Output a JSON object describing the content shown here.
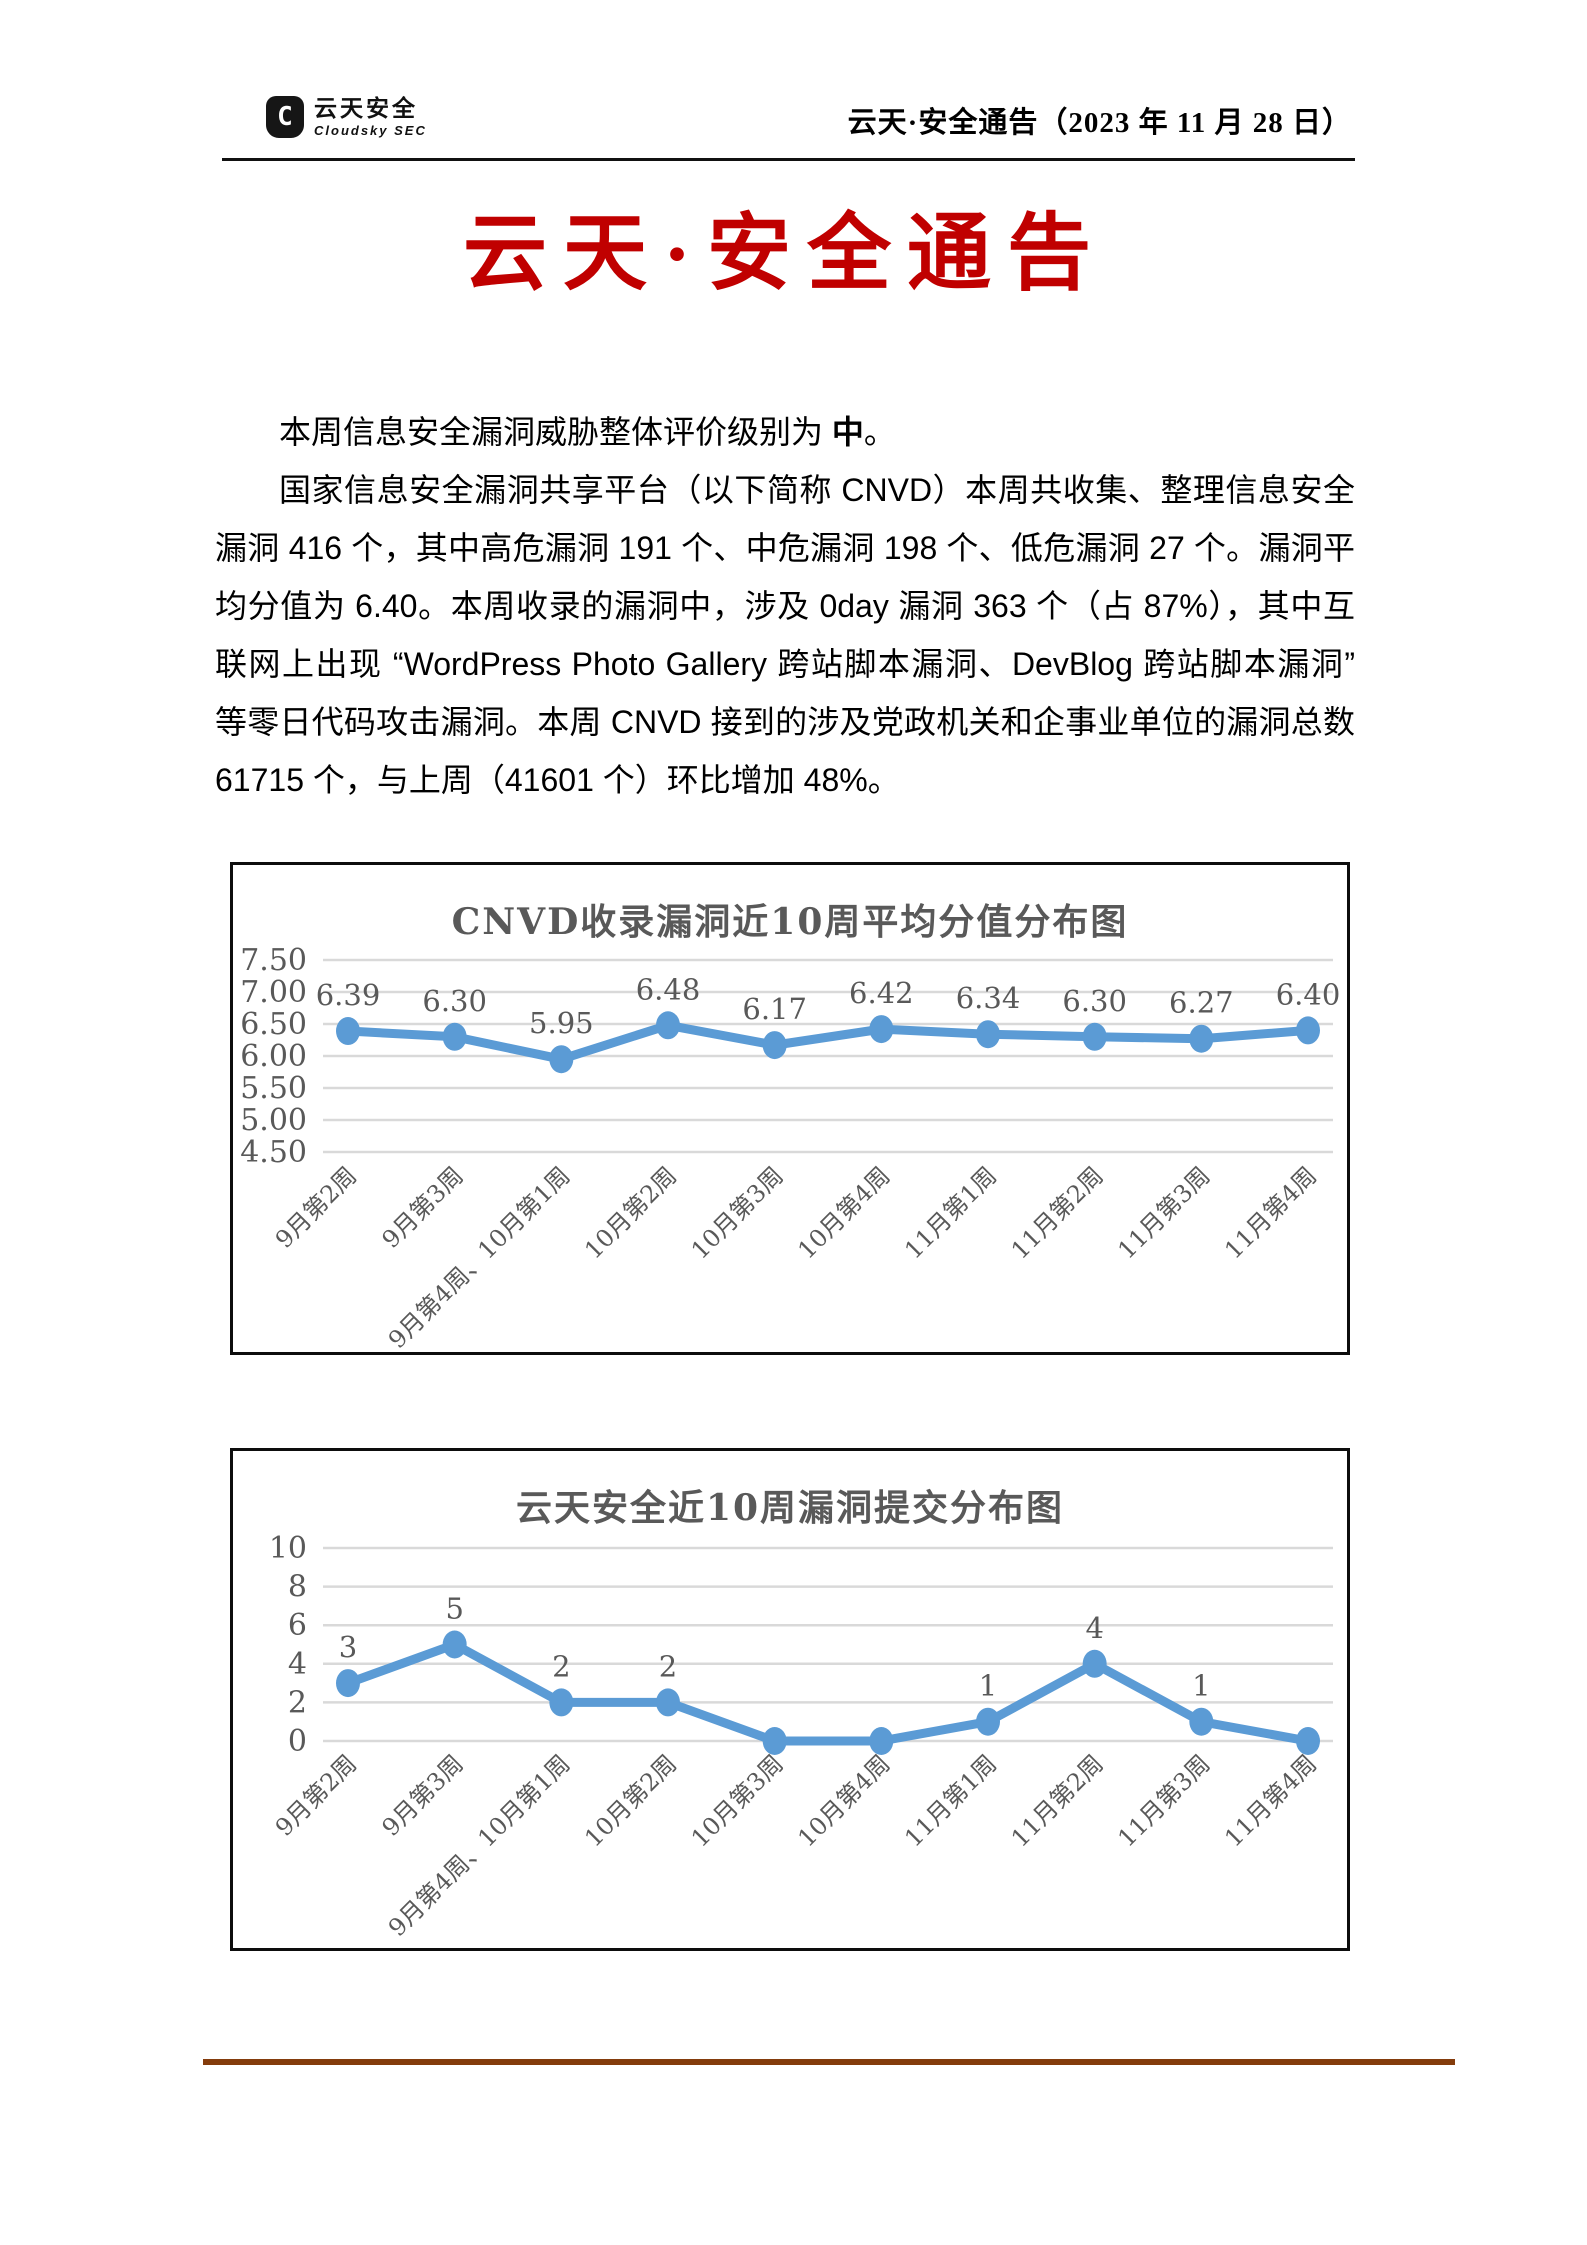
{
  "header": {
    "logo": {
      "mark": "C",
      "name": "云天安全",
      "subtitle": "Cloudsky SEC"
    },
    "doc_title": "云天·安全通告（2023 年 11 月 28 日）"
  },
  "title": {
    "text": "云天·安全通告",
    "color": "#C00000"
  },
  "body": {
    "p1_prefix": "本周信息安全漏洞威胁整体评价级别为 ",
    "p1_emphasis": "中",
    "p1_suffix": "。",
    "p2": "国家信息安全漏洞共享平台（以下简称 CNVD）本周共收集、整理信息安全漏洞 416 个，其中高危漏洞 191 个、中危漏洞 198 个、低危漏洞 27 个。漏洞平均分值为 6.40。本周收录的漏洞中，涉及 0day 漏洞 363 个（占 87%），其中互联网上出现 “WordPress Photo Gallery 跨站脚本漏洞、DevBlog 跨站脚本漏洞” 等零日代码攻击漏洞。本周 CNVD 接到的涉及党政机关和企事业单位的漏洞总数 61715 个，与上周（41601 个）环比增加 48%。"
  },
  "chart_data": [
    {
      "type": "line",
      "title": "CNVD收录漏洞近10周平均分值分布图",
      "categories": [
        "9月第2周",
        "9月第3周",
        "9月第4周、10月第1周",
        "10月第2周",
        "10月第3周",
        "10月第4周",
        "11月第1周",
        "11月第2周",
        "11月第3周",
        "11月第4周"
      ],
      "values": [
        6.39,
        6.3,
        5.95,
        6.48,
        6.17,
        6.42,
        6.34,
        6.3,
        6.27,
        6.4
      ],
      "point_labels": [
        "6.39",
        "6.30",
        "5.95",
        "6.48",
        "6.17",
        "6.42",
        "6.34",
        "6.30",
        "6.27",
        "6.40"
      ],
      "ylim": [
        4.5,
        7.5
      ],
      "yticks": [
        "7.50",
        "7.00",
        "6.50",
        "6.00",
        "5.50",
        "5.00",
        "4.50"
      ],
      "grid": true,
      "legend_position": "none",
      "line_color": "#5B9BD5",
      "grid_color": "#D9D9D9",
      "text_color": "#595959"
    },
    {
      "type": "line",
      "title": "云天安全近10周漏洞提交分布图",
      "categories": [
        "9月第2周",
        "9月第3周",
        "9月第4周、10月第1周",
        "10月第2周",
        "10月第3周",
        "10月第4周",
        "11月第1周",
        "11月第2周",
        "11月第3周",
        "11月第4周"
      ],
      "values": [
        3,
        5,
        2,
        2,
        0,
        0,
        1,
        4,
        1,
        0
      ],
      "point_labels": [
        "3",
        "5",
        "2",
        "2",
        "",
        "",
        "1",
        "4",
        "1",
        ""
      ],
      "ylim": [
        0,
        10
      ],
      "yticks": [
        "10",
        "8",
        "6",
        "4",
        "2",
        "0"
      ],
      "grid": true,
      "legend_position": "none",
      "line_color": "#5B9BD5",
      "grid_color": "#D9D9D9",
      "text_color": "#595959"
    }
  ],
  "footer": {
    "rule_color": "#843C0C"
  }
}
